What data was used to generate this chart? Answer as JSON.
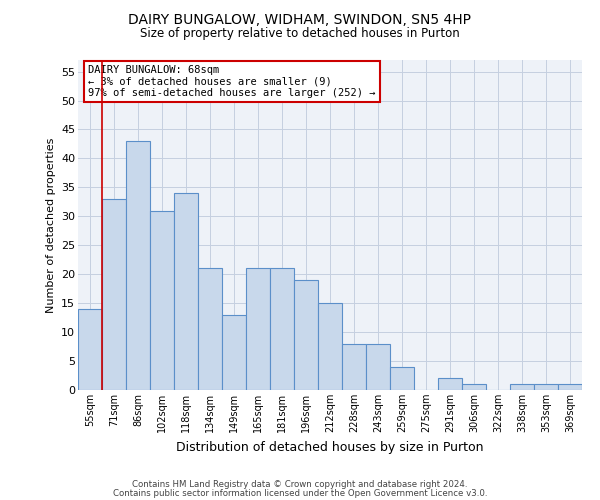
{
  "title": "DAIRY BUNGALOW, WIDHAM, SWINDON, SN5 4HP",
  "subtitle": "Size of property relative to detached houses in Purton",
  "xlabel": "Distribution of detached houses by size in Purton",
  "ylabel": "Number of detached properties",
  "footer1": "Contains HM Land Registry data © Crown copyright and database right 2024.",
  "footer2": "Contains public sector information licensed under the Open Government Licence v3.0.",
  "annotation_title": "DAIRY BUNGALOW: 68sqm",
  "annotation_line2": "← 3% of detached houses are smaller (9)",
  "annotation_line3": "97% of semi-detached houses are larger (252) →",
  "bar_color": "#c8d8eb",
  "bar_edge_color": "#5b8fc9",
  "grid_color": "#c5cfe0",
  "background_color": "#eef2f8",
  "vline_color": "#cc0000",
  "categories": [
    "55sqm",
    "71sqm",
    "86sqm",
    "102sqm",
    "118sqm",
    "134sqm",
    "149sqm",
    "165sqm",
    "181sqm",
    "196sqm",
    "212sqm",
    "228sqm",
    "243sqm",
    "259sqm",
    "275sqm",
    "291sqm",
    "306sqm",
    "322sqm",
    "338sqm",
    "353sqm",
    "369sqm"
  ],
  "values": [
    14,
    33,
    43,
    31,
    34,
    21,
    13,
    21,
    21,
    19,
    15,
    8,
    8,
    4,
    0,
    2,
    1,
    0,
    1,
    1,
    1
  ],
  "ylim": [
    0,
    57
  ],
  "yticks": [
    0,
    5,
    10,
    15,
    20,
    25,
    30,
    35,
    40,
    45,
    50,
    55
  ]
}
